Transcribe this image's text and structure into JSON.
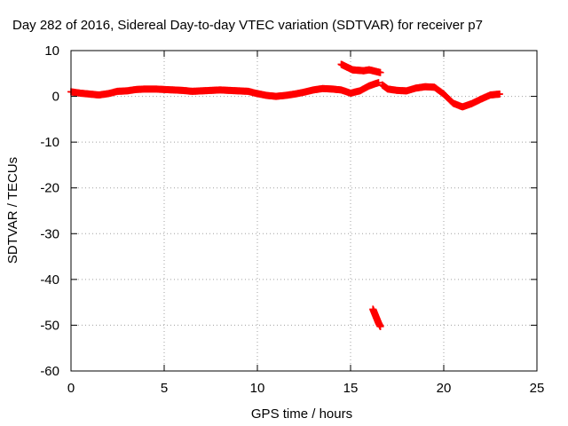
{
  "chart_data": {
    "type": "scatter",
    "title": "Day 282 of 2016, Sidereal Day-to-day VTEC variation (SDTVAR) for receiver p7",
    "xlabel": "GPS time / hours",
    "ylabel": "SDTVAR / TECUs",
    "xlim": [
      0,
      25
    ],
    "ylim": [
      -60,
      10
    ],
    "xticks": [
      0,
      5,
      10,
      15,
      20,
      25
    ],
    "yticks": [
      10,
      0,
      -10,
      -20,
      -30,
      -40,
      -50,
      -60
    ],
    "grid": true,
    "marker": "plus",
    "color": "#ff0000",
    "series": [
      {
        "x": [
          0,
          0.5,
          1,
          1.5,
          2,
          2.5,
          3,
          3.5,
          4,
          4.5,
          5,
          5.5,
          6,
          6.5,
          7,
          7.5,
          8,
          8.5,
          9,
          9.5,
          10,
          10.5,
          11,
          11.5,
          12,
          12.5,
          13,
          13.5,
          14,
          14.5,
          15,
          15.5,
          16,
          16.5
        ],
        "y": [
          1,
          0.7,
          0.5,
          0.3,
          0.6,
          1.1,
          1.2,
          1.5,
          1.6,
          1.6,
          1.5,
          1.4,
          1.3,
          1.1,
          1.2,
          1.3,
          1.4,
          1.3,
          1.2,
          1.1,
          0.6,
          0.2,
          0,
          0.2,
          0.5,
          0.9,
          1.4,
          1.7,
          1.6,
          1.4,
          0.7,
          1.2,
          2.3,
          3
        ]
      },
      {
        "x": [
          14.5,
          14.8,
          15.1,
          15.4,
          15.7,
          16.0,
          16.3,
          16.6
        ],
        "y": [
          7,
          6.4,
          5.8,
          5.7,
          5.6,
          5.8,
          5.5,
          5.2
        ]
      },
      {
        "x": [
          16.2,
          16.3,
          16.4,
          16.5,
          16.6
        ],
        "y": [
          -46.5,
          -47.5,
          -48.5,
          -49.5,
          -50.3
        ]
      },
      {
        "x": [
          16.7,
          17.0,
          17.5,
          18.0,
          18.5,
          19.0,
          19.5,
          20.0,
          20.5,
          21.0,
          21.5,
          22.0,
          22.5,
          23.0
        ],
        "y": [
          2.5,
          1.6,
          1.3,
          1.2,
          1.8,
          2.1,
          2,
          0.5,
          -1.5,
          -2.3,
          -1.6,
          -0.6,
          0.3,
          0.5
        ]
      }
    ]
  }
}
